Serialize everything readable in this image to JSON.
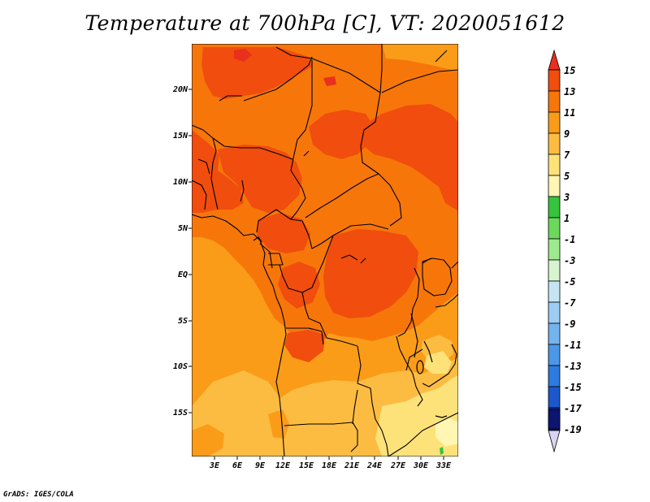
{
  "title": "Temperature at 700hPa [C], VT: 2020051612",
  "credit": "GrADS: IGES/COLA",
  "map": {
    "lat_labels": [
      "20N",
      "15N",
      "10N",
      "5N",
      "EQ",
      "5S",
      "10S",
      "15S"
    ],
    "lon_labels": [
      "3E",
      "6E",
      "9E",
      "12E",
      "15E",
      "18E",
      "21E",
      "24E",
      "27E",
      "30E",
      "33E"
    ]
  },
  "colorbar": {
    "labels": [
      "15",
      "13",
      "11",
      "9",
      "7",
      "5",
      "3",
      "1",
      "-1",
      "-3",
      "-5",
      "-7",
      "-9",
      "-11",
      "-13",
      "-15",
      "-17",
      "-19"
    ],
    "colors": {
      "gt15": "#e8301c",
      "13_15": "#f04d0e",
      "11_13": "#f7760a",
      "9_11": "#fa9c18",
      "7_9": "#fcbc42",
      "5_7": "#fde27a",
      "3_5": "#fff6b3",
      "1_3": "#35c43c",
      "m1_1": "#6cd85c",
      "m3_m1": "#9eea8d",
      "m5_m3": "#d6f4cf",
      "m7_m5": "#c7e4f5",
      "m9_m7": "#9ccdf2",
      "m11_m9": "#73b3ee",
      "m13_m11": "#4c97e8",
      "m15_m13": "#2d7ae0",
      "m17_m15": "#1c57cc",
      "m19_m17": "#1432a6",
      "lt_m19": "#0c1670",
      "below": "#d7d3f0"
    }
  }
}
